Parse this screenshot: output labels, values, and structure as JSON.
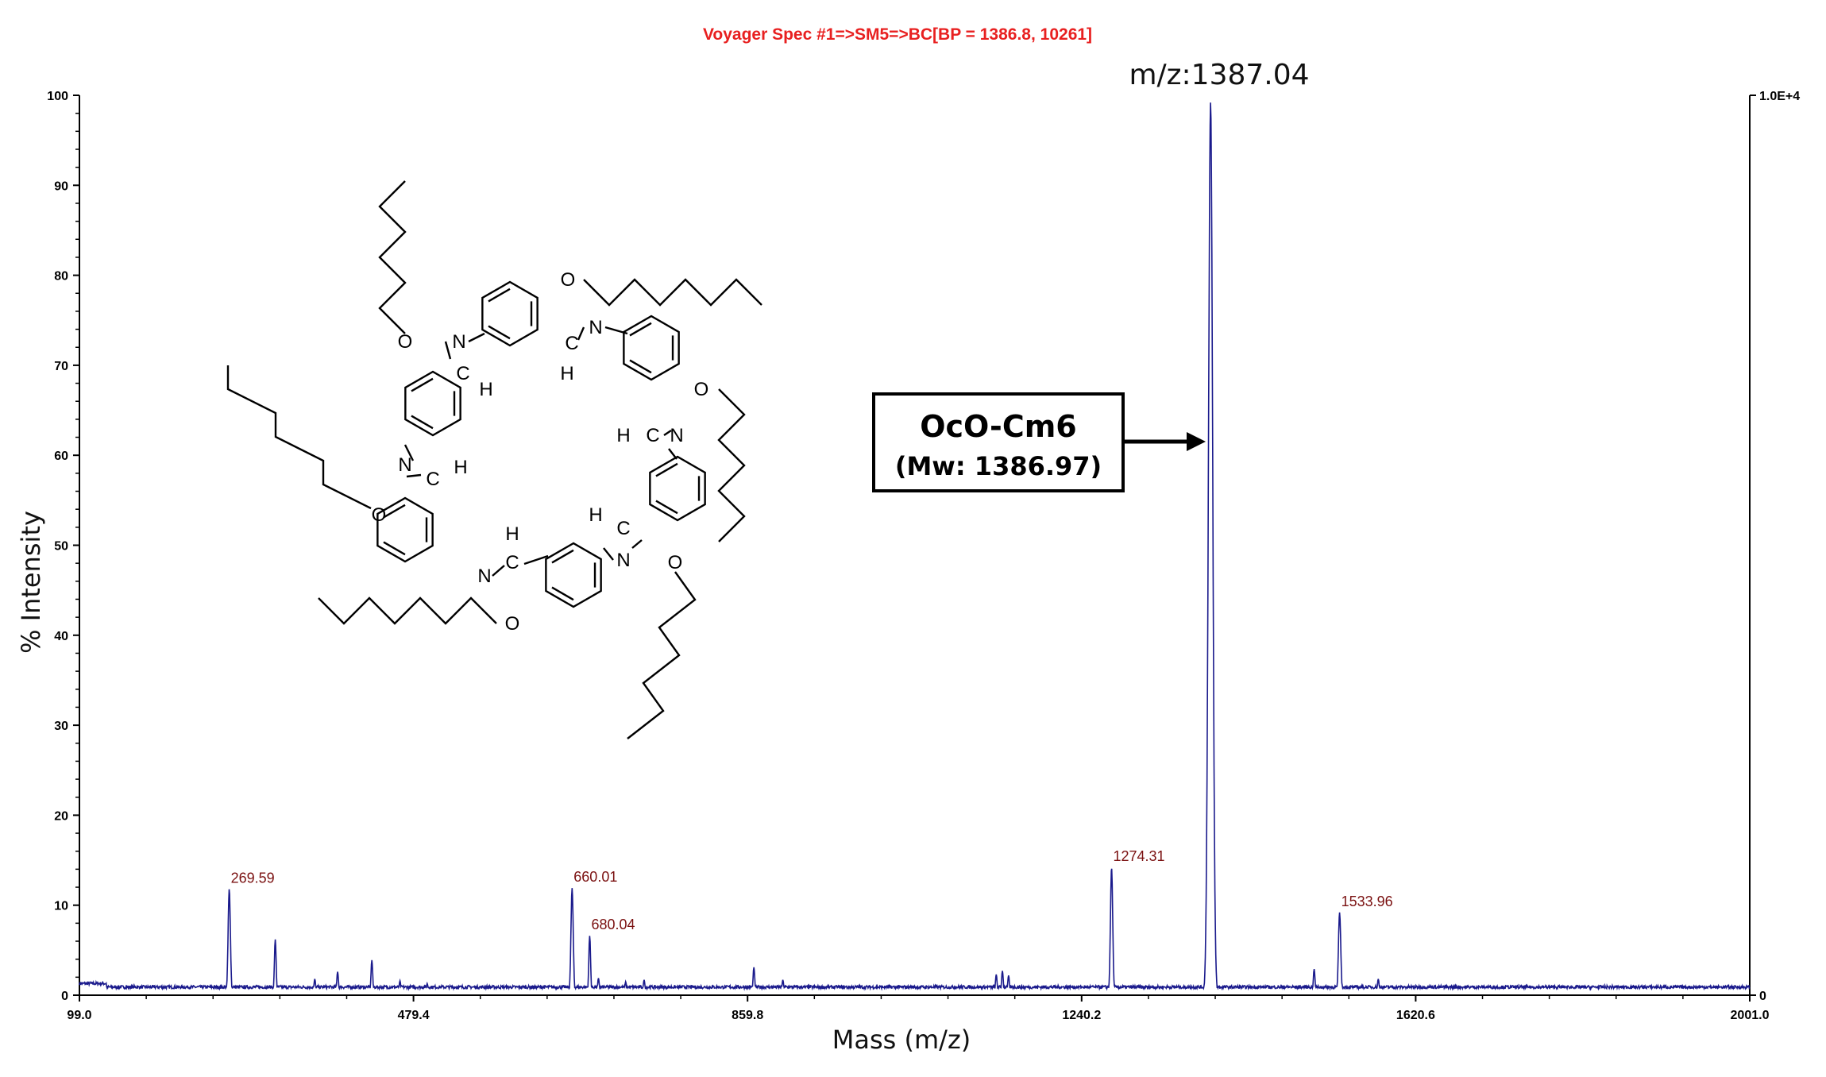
{
  "chart_data": {
    "type": "line",
    "title": "Voyager Spec #1=>SM5=>BC[BP = 1386.8, 10261]",
    "xlabel": "Mass (m/z)",
    "ylabel": "% Intensity",
    "xlim": [
      99.0,
      2001.0
    ],
    "ylim": [
      0,
      100
    ],
    "x_ticks": [
      "99.0",
      "479.4",
      "859.8",
      "1240.2",
      "1620.6",
      "2001.0"
    ],
    "y_ticks": [
      "0",
      "10",
      "20",
      "30",
      "40",
      "50",
      "60",
      "70",
      "80",
      "90",
      "100"
    ],
    "right_axis_ticks": {
      "top": "1.0E+4",
      "bottom": "0"
    },
    "baseline": 0.9,
    "peaks": [
      {
        "x": 269.59,
        "y": 11.8,
        "label": "269.59"
      },
      {
        "x": 322.0,
        "y": 6.2
      },
      {
        "x": 367.0,
        "y": 1.8
      },
      {
        "x": 393.0,
        "y": 2.6
      },
      {
        "x": 432.0,
        "y": 3.9
      },
      {
        "x": 464.0,
        "y": 1.6
      },
      {
        "x": 495.0,
        "y": 1.3
      },
      {
        "x": 660.01,
        "y": 11.9,
        "label": "660.01"
      },
      {
        "x": 680.04,
        "y": 6.6,
        "label": "680.04"
      },
      {
        "x": 690.0,
        "y": 1.9
      },
      {
        "x": 721.0,
        "y": 1.5
      },
      {
        "x": 742.0,
        "y": 1.7
      },
      {
        "x": 867.0,
        "y": 3.1
      },
      {
        "x": 900.0,
        "y": 1.7
      },
      {
        "x": 1143.0,
        "y": 2.3
      },
      {
        "x": 1150.0,
        "y": 2.7
      },
      {
        "x": 1157.0,
        "y": 2.2
      },
      {
        "x": 1274.31,
        "y": 14.2,
        "label": "1274.31"
      },
      {
        "x": 1387.04,
        "y": 99.2
      },
      {
        "x": 1505.0,
        "y": 2.9
      },
      {
        "x": 1533.96,
        "y": 9.2,
        "label": "1533.96"
      },
      {
        "x": 1578.0,
        "y": 1.8
      }
    ],
    "annotations": {
      "top_peak": "m/z:1387.04",
      "box_title": "OcO-Cm6",
      "box_sub": "(Mw: 1386.97)"
    },
    "colors": {
      "series": "#1a1a8c",
      "peak_label": "#7a1010",
      "title": "#e82020"
    }
  },
  "structure_atoms": {
    "oxygen": "O",
    "nitrogen": "N",
    "carbon": "C",
    "hydrogen": "H"
  }
}
